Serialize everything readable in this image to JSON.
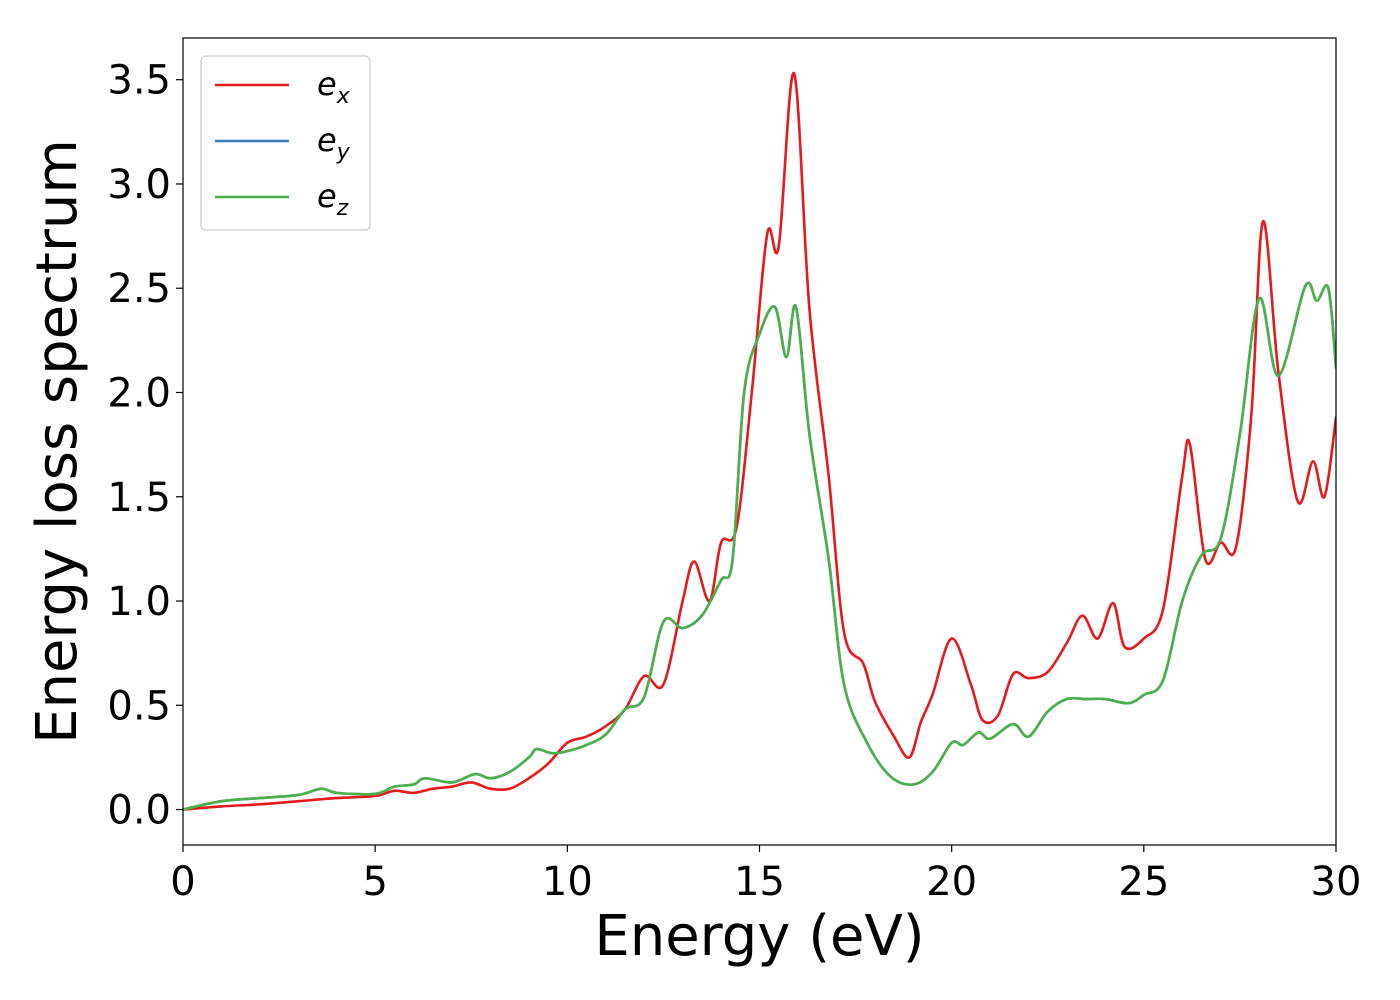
{
  "chart_data": {
    "type": "line",
    "xlabel": "Energy (eV)",
    "ylabel": "Energy loss spectrum",
    "xlim": [
      0,
      30
    ],
    "ylim": [
      -0.17,
      3.7
    ],
    "x_ticks": [
      "0",
      "5",
      "10",
      "15",
      "20",
      "25",
      "30"
    ],
    "y_ticks": [
      "0.0",
      "0.5",
      "1.0",
      "1.5",
      "2.0",
      "2.5",
      "3.0",
      "3.5"
    ],
    "grid": false,
    "legend_position": "top-left",
    "series": [
      {
        "name": "e_x",
        "label_base": "e",
        "label_sub": "x",
        "color": "#e41a1c",
        "x": [
          0,
          1,
          2,
          3,
          4,
          5,
          5.5,
          6,
          6.5,
          7,
          7.5,
          8,
          8.5,
          9,
          9.5,
          10,
          10.5,
          11,
          11.5,
          12,
          12.5,
          13,
          13.3,
          13.7,
          14,
          14.4,
          14.8,
          15.2,
          15.5,
          15.9,
          16.3,
          16.8,
          17.2,
          17.7,
          18,
          18.5,
          18.9,
          19.2,
          19.5,
          20,
          20.5,
          20.8,
          21.2,
          21.6,
          22,
          22.5,
          23,
          23.4,
          23.8,
          24.2,
          24.5,
          25,
          25.5,
          26,
          26.2,
          26.6,
          27,
          27.4,
          27.8,
          28.1,
          28.5,
          29,
          29.4,
          29.7,
          30
        ],
        "y": [
          0.0,
          0.015,
          0.025,
          0.04,
          0.055,
          0.065,
          0.09,
          0.08,
          0.1,
          0.11,
          0.13,
          0.1,
          0.1,
          0.15,
          0.22,
          0.32,
          0.35,
          0.4,
          0.48,
          0.64,
          0.6,
          1.0,
          1.19,
          1.0,
          1.28,
          1.35,
          2.0,
          2.76,
          2.7,
          3.53,
          2.4,
          1.6,
          0.85,
          0.7,
          0.52,
          0.35,
          0.25,
          0.42,
          0.55,
          0.82,
          0.6,
          0.43,
          0.45,
          0.65,
          0.63,
          0.66,
          0.8,
          0.93,
          0.82,
          0.99,
          0.78,
          0.82,
          0.96,
          1.6,
          1.75,
          1.2,
          1.28,
          1.26,
          1.9,
          2.82,
          2.1,
          1.48,
          1.67,
          1.5,
          1.88
        ]
      },
      {
        "name": "e_y",
        "label_base": "e",
        "label_sub": "y",
        "color": "#377eb8",
        "x": [
          0,
          1,
          2,
          3,
          3.6,
          4,
          5,
          5.5,
          6,
          6.3,
          7,
          7.6,
          8,
          8.5,
          9,
          9.2,
          9.6,
          10,
          10.5,
          11,
          11.5,
          12,
          12.5,
          13,
          13.5,
          14,
          14.3,
          14.6,
          15,
          15.4,
          15.7,
          15.95,
          16.3,
          16.8,
          17.2,
          17.8,
          18.4,
          19,
          19.5,
          20,
          20.3,
          20.7,
          21,
          21.6,
          22,
          22.5,
          23,
          23.5,
          24,
          24.6,
          25,
          25.5,
          26,
          26.5,
          27,
          27.5,
          28,
          28.5,
          29.2,
          29.5,
          29.8,
          30
        ],
        "y": [
          0.0,
          0.04,
          0.055,
          0.07,
          0.1,
          0.08,
          0.075,
          0.11,
          0.12,
          0.15,
          0.13,
          0.17,
          0.15,
          0.18,
          0.25,
          0.29,
          0.27,
          0.28,
          0.31,
          0.36,
          0.48,
          0.54,
          0.9,
          0.87,
          0.93,
          1.1,
          1.2,
          2.0,
          2.28,
          2.41,
          2.17,
          2.41,
          1.8,
          1.2,
          0.6,
          0.32,
          0.16,
          0.12,
          0.18,
          0.32,
          0.31,
          0.37,
          0.34,
          0.41,
          0.35,
          0.47,
          0.53,
          0.53,
          0.53,
          0.51,
          0.55,
          0.62,
          1.0,
          1.22,
          1.3,
          1.8,
          2.45,
          2.08,
          2.51,
          2.44,
          2.5,
          2.12
        ]
      },
      {
        "name": "e_z",
        "label_base": "e",
        "label_sub": "z",
        "color": "#4daf4a",
        "x": [
          0,
          1,
          2,
          3,
          3.6,
          4,
          5,
          5.5,
          6,
          6.3,
          7,
          7.6,
          8,
          8.5,
          9,
          9.2,
          9.6,
          10,
          10.5,
          11,
          11.5,
          12,
          12.5,
          13,
          13.5,
          14,
          14.3,
          14.6,
          15,
          15.4,
          15.7,
          15.95,
          16.3,
          16.8,
          17.2,
          17.8,
          18.4,
          19,
          19.5,
          20,
          20.3,
          20.7,
          21,
          21.6,
          22,
          22.5,
          23,
          23.5,
          24,
          24.6,
          25,
          25.5,
          26,
          26.5,
          27,
          27.5,
          28,
          28.5,
          29.2,
          29.5,
          29.8,
          30
        ],
        "y": [
          0.0,
          0.04,
          0.055,
          0.07,
          0.1,
          0.08,
          0.075,
          0.11,
          0.12,
          0.15,
          0.13,
          0.17,
          0.15,
          0.18,
          0.25,
          0.29,
          0.27,
          0.28,
          0.31,
          0.36,
          0.48,
          0.54,
          0.9,
          0.87,
          0.93,
          1.1,
          1.2,
          2.0,
          2.28,
          2.41,
          2.17,
          2.41,
          1.8,
          1.2,
          0.6,
          0.32,
          0.16,
          0.12,
          0.18,
          0.32,
          0.31,
          0.37,
          0.34,
          0.41,
          0.35,
          0.47,
          0.53,
          0.53,
          0.53,
          0.51,
          0.55,
          0.62,
          1.0,
          1.22,
          1.3,
          1.8,
          2.45,
          2.08,
          2.51,
          2.44,
          2.5,
          2.12
        ]
      }
    ]
  }
}
